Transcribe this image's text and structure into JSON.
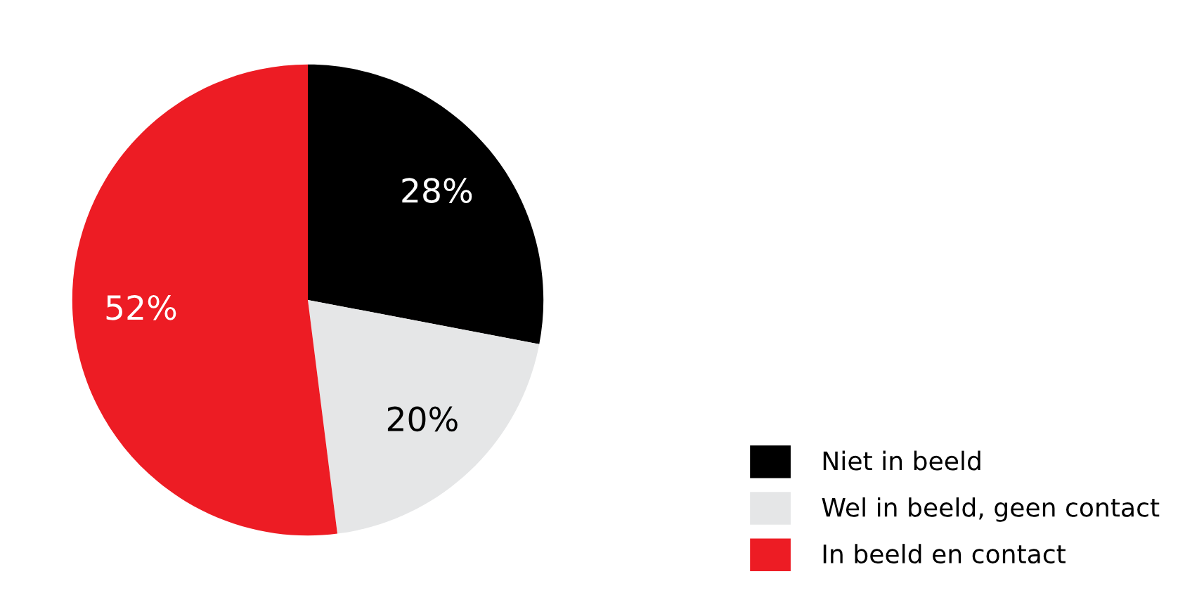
{
  "chart_data": {
    "type": "pie",
    "categories": [
      "Niet in beeld",
      "Wel in beeld, geen contact",
      "In beeld en contact"
    ],
    "values": [
      28,
      20,
      52
    ],
    "colors": [
      "#000000",
      "#e5e6e7",
      "#ed1c24"
    ],
    "value_labels": [
      "28%",
      "20%",
      "52%"
    ],
    "legend": "bottom right"
  }
}
